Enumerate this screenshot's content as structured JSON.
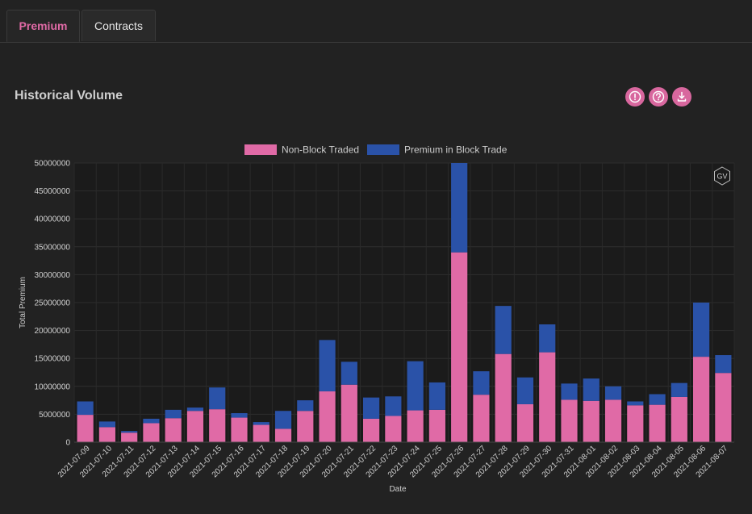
{
  "tabs": [
    {
      "label": "Premium",
      "active": true
    },
    {
      "label": "Contracts",
      "active": false
    }
  ],
  "section": {
    "title": "Historical Volume"
  },
  "toolbar_icons": [
    "alert-icon",
    "help-icon",
    "download-icon"
  ],
  "watermark": "GV",
  "colors": {
    "non_block": "#e06aa6",
    "block": "#2a52a8",
    "accent": "#d8679e"
  },
  "chart_data": {
    "type": "bar",
    "stacked": true,
    "xlabel": "Date",
    "ylabel": "Total Premium",
    "ylim": [
      0,
      50000000
    ],
    "yticks": [
      0,
      5000000,
      10000000,
      15000000,
      20000000,
      25000000,
      30000000,
      35000000,
      40000000,
      45000000,
      50000000
    ],
    "legend_position": "top-center",
    "grid": true,
    "categories": [
      "2021-07-09",
      "2021-07-10",
      "2021-07-11",
      "2021-07-12",
      "2021-07-13",
      "2021-07-14",
      "2021-07-15",
      "2021-07-16",
      "2021-07-17",
      "2021-07-18",
      "2021-07-19",
      "2021-07-20",
      "2021-07-21",
      "2021-07-22",
      "2021-07-23",
      "2021-07-24",
      "2021-07-25",
      "2021-07-26",
      "2021-07-27",
      "2021-07-28",
      "2021-07-29",
      "2021-07-30",
      "2021-07-31",
      "2021-08-01",
      "2021-08-02",
      "2021-08-03",
      "2021-08-04",
      "2021-08-05",
      "2021-08-06",
      "2021-08-07"
    ],
    "series": [
      {
        "name": "Non-Block Traded",
        "values": [
          4900000,
          2700000,
          1700000,
          3400000,
          4300000,
          5600000,
          5900000,
          4400000,
          3100000,
          2400000,
          5600000,
          9100000,
          10300000,
          4200000,
          4700000,
          5700000,
          5800000,
          34000000,
          8500000,
          15800000,
          6800000,
          16100000,
          7600000,
          7400000,
          7600000,
          6600000,
          6700000,
          8100000,
          15300000,
          12400000
        ]
      },
      {
        "name": "Premium in Block Trade",
        "values": [
          2400000,
          1000000,
          300000,
          800000,
          1500000,
          600000,
          3900000,
          800000,
          500000,
          3200000,
          1900000,
          9200000,
          4100000,
          3800000,
          3500000,
          8800000,
          4900000,
          16000000,
          4200000,
          8600000,
          4800000,
          5000000,
          2900000,
          4000000,
          2400000,
          700000,
          1900000,
          2500000,
          9700000,
          3200000
        ]
      }
    ]
  }
}
